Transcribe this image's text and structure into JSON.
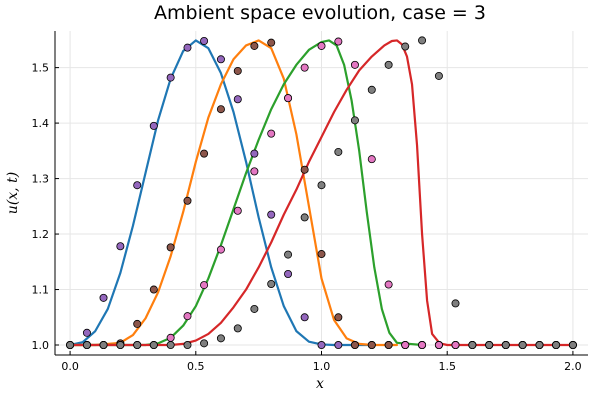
{
  "chart_data": {
    "type": "line",
    "title": "Ambient space evolution, case = 3",
    "xlabel": "x",
    "ylabel": "u(x, t)",
    "xlim": [
      -0.06,
      2.06
    ],
    "ylim": [
      0.982,
      1.566
    ],
    "xticks": [
      0.0,
      0.5,
      1.0,
      1.5,
      2.0
    ],
    "xtick_labels": [
      "0.0",
      "0.5",
      "1.0",
      "1.5",
      "2.0"
    ],
    "yticks": [
      1.0,
      1.1,
      1.2,
      1.3,
      1.4,
      1.5
    ],
    "ytick_labels": [
      "1.0",
      "1.1",
      "1.2",
      "1.3",
      "1.4",
      "1.5"
    ],
    "grid": true,
    "legend": false,
    "series": [
      {
        "color": "#1f77b4",
        "x": [
          0.0,
          0.05,
          0.1,
          0.15,
          0.2,
          0.25,
          0.3,
          0.35,
          0.4,
          0.45,
          0.5,
          0.55,
          0.6,
          0.65,
          0.7,
          0.75,
          0.8,
          0.85,
          0.9,
          0.95,
          1.0,
          1.05,
          1.1,
          1.15,
          1.2
        ],
        "y": [
          1.0,
          1.005,
          1.025,
          1.065,
          1.13,
          1.215,
          1.31,
          1.405,
          1.48,
          1.53,
          1.549,
          1.535,
          1.49,
          1.42,
          1.33,
          1.23,
          1.14,
          1.07,
          1.025,
          1.006,
          1.001,
          1.0,
          1.0,
          1.0,
          1.0
        ]
      },
      {
        "color": "#ff7f0e",
        "x": [
          0.0,
          0.1,
          0.2,
          0.25,
          0.3,
          0.35,
          0.4,
          0.45,
          0.5,
          0.55,
          0.6,
          0.65,
          0.7,
          0.75,
          0.8,
          0.85,
          0.9,
          0.95,
          1.0,
          1.05,
          1.1,
          1.15,
          1.2,
          1.3
        ],
        "y": [
          1.0,
          1.0,
          1.004,
          1.018,
          1.048,
          1.095,
          1.16,
          1.24,
          1.33,
          1.41,
          1.47,
          1.515,
          1.54,
          1.549,
          1.535,
          1.48,
          1.38,
          1.25,
          1.12,
          1.045,
          1.012,
          1.002,
          1.0,
          1.0
        ]
      },
      {
        "color": "#2ca02c",
        "x": [
          0.0,
          0.3,
          0.35,
          0.4,
          0.45,
          0.5,
          0.55,
          0.6,
          0.65,
          0.7,
          0.75,
          0.8,
          0.85,
          0.9,
          0.95,
          1.0,
          1.03,
          1.06,
          1.09,
          1.12,
          1.15,
          1.18,
          1.21,
          1.24,
          1.27,
          1.3,
          1.4
        ],
        "y": [
          1.0,
          1.0,
          1.003,
          1.013,
          1.035,
          1.07,
          1.12,
          1.18,
          1.245,
          1.31,
          1.37,
          1.425,
          1.47,
          1.505,
          1.532,
          1.546,
          1.549,
          1.54,
          1.505,
          1.44,
          1.35,
          1.24,
          1.14,
          1.065,
          1.022,
          1.004,
          1.0
        ]
      },
      {
        "color": "#d62728",
        "x": [
          0.0,
          0.4,
          0.45,
          0.5,
          0.55,
          0.6,
          0.65,
          0.7,
          0.75,
          0.8,
          0.85,
          0.9,
          0.95,
          1.0,
          1.05,
          1.1,
          1.15,
          1.2,
          1.25,
          1.28,
          1.3,
          1.32,
          1.34,
          1.36,
          1.38,
          1.4,
          1.42,
          1.44,
          1.47,
          1.5,
          2.0
        ],
        "y": [
          1.0,
          1.0,
          1.002,
          1.008,
          1.02,
          1.04,
          1.068,
          1.1,
          1.14,
          1.185,
          1.235,
          1.28,
          1.33,
          1.375,
          1.42,
          1.46,
          1.495,
          1.52,
          1.54,
          1.548,
          1.549,
          1.542,
          1.52,
          1.47,
          1.36,
          1.2,
          1.08,
          1.02,
          1.003,
          1.0,
          1.0
        ]
      }
    ],
    "markers": [
      {
        "x": [
          0.0,
          0.067,
          0.133,
          0.2,
          0.267,
          0.333,
          0.4,
          0.467,
          0.533,
          0.6,
          0.667,
          0.733,
          0.8,
          0.867,
          0.933,
          1.0,
          1.067,
          1.133,
          1.2,
          1.267,
          1.333,
          1.4,
          1.467,
          1.533,
          1.6,
          1.667,
          1.733,
          1.8,
          1.867,
          1.933,
          2.0
        ],
        "y": [
          1.0,
          1.022,
          1.085,
          1.178,
          1.288,
          1.395,
          1.482,
          1.536,
          1.548,
          1.515,
          1.443,
          1.345,
          1.235,
          1.128,
          1.05,
          1.0,
          1.0,
          1.0,
          1.0,
          1.0,
          1.0,
          1.0,
          1.0,
          1.0,
          1.0,
          1.0,
          1.0,
          1.0,
          1.0,
          1.0,
          1.0
        ],
        "color": "#9467bd"
      },
      {
        "x": [
          0.0,
          0.067,
          0.133,
          0.2,
          0.267,
          0.333,
          0.4,
          0.467,
          0.533,
          0.6,
          0.667,
          0.733,
          0.8,
          0.867,
          0.933,
          1.0,
          1.067,
          1.133,
          1.2,
          1.267,
          1.333,
          1.4,
          1.467,
          1.533,
          1.6,
          1.667,
          1.733,
          1.8,
          1.867,
          1.933,
          2.0
        ],
        "y": [
          1.0,
          1.0,
          1.0,
          1.003,
          1.038,
          1.1,
          1.176,
          1.26,
          1.345,
          1.425,
          1.494,
          1.539,
          1.545,
          1.445,
          1.316,
          1.164,
          1.05,
          1.0,
          1.0,
          1.0,
          1.0,
          1.0,
          1.0,
          1.0,
          1.0,
          1.0,
          1.0,
          1.0,
          1.0,
          1.0,
          1.0
        ],
        "color": "#8c564b"
      },
      {
        "x": [
          0.0,
          0.067,
          0.133,
          0.2,
          0.267,
          0.333,
          0.4,
          0.467,
          0.533,
          0.6,
          0.667,
          0.733,
          0.8,
          0.867,
          0.933,
          1.0,
          1.067,
          1.133,
          1.2,
          1.267,
          1.333,
          1.4,
          1.467,
          1.533,
          1.6,
          1.667,
          1.733,
          1.8,
          1.867,
          1.933,
          2.0
        ],
        "y": [
          1.0,
          1.0,
          1.0,
          1.0,
          1.0,
          1.0,
          1.013,
          1.052,
          1.108,
          1.172,
          1.242,
          1.313,
          1.381,
          1.445,
          1.5,
          1.539,
          1.547,
          1.505,
          1.335,
          1.109,
          1.0,
          1.0,
          1.0,
          1.0,
          1.0,
          1.0,
          1.0,
          1.0,
          1.0,
          1.0,
          1.0
        ],
        "color": "#e377c2"
      },
      {
        "x": [
          0.0,
          0.067,
          0.133,
          0.2,
          0.267,
          0.333,
          0.4,
          0.467,
          0.533,
          0.6,
          0.667,
          0.733,
          0.8,
          0.867,
          0.933,
          1.0,
          1.067,
          1.133,
          1.2,
          1.267,
          1.333,
          1.4,
          1.467,
          1.533,
          1.6,
          1.667,
          1.733,
          1.8,
          1.867,
          1.933,
          2.0
        ],
        "y": [
          1.0,
          1.0,
          1.0,
          1.0,
          1.0,
          1.0,
          1.0,
          1.0,
          1.003,
          1.012,
          1.03,
          1.065,
          1.11,
          1.163,
          1.23,
          1.288,
          1.348,
          1.405,
          1.46,
          1.505,
          1.538,
          1.549,
          1.485,
          1.075,
          1.0,
          1.0,
          1.0,
          1.0,
          1.0,
          1.0,
          1.0
        ],
        "color": "#7f7f7f"
      }
    ]
  }
}
